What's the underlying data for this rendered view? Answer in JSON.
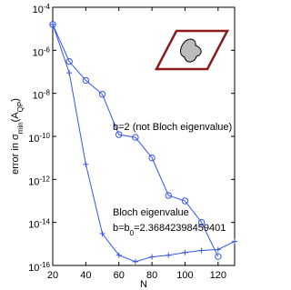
{
  "chart_data": {
    "type": "line",
    "x_label": "N",
    "y_label": "error in σ_{min}(A_{QP})",
    "xlim": [
      20,
      130
    ],
    "xticks": [
      20,
      40,
      60,
      80,
      100,
      120
    ],
    "ylim": [
      1e-16,
      0.0001
    ],
    "log_y": true,
    "yticks": [
      {
        "value": 1e-16,
        "label": "10^{-16}"
      },
      {
        "value": 1e-14,
        "label": "10^{-14}"
      },
      {
        "value": 1e-12,
        "label": "10^{-12}"
      },
      {
        "value": 1e-10,
        "label": "10^{-10}"
      },
      {
        "value": 1e-08,
        "label": "10^{-8}"
      },
      {
        "value": 1e-06,
        "label": "10^{-6}"
      },
      {
        "value": 0.0001,
        "label": "10^{-4}"
      }
    ],
    "series": [
      {
        "name": "b=2 (not Bloch eigenvalue)",
        "color": "#3355ee",
        "marker": "circle",
        "x": [
          20,
          30,
          40,
          50,
          60,
          70,
          80,
          90,
          100,
          110,
          120
        ],
        "values": [
          1.6e-05,
          3e-07,
          4e-08,
          9e-09,
          1.2e-10,
          9e-11,
          1e-11,
          1.8e-13,
          1e-13,
          1e-14,
          2.6e-16
        ]
      },
      {
        "name": "Bloch eigenvalue",
        "color": "#3355ee",
        "marker": "plus",
        "x": [
          20,
          30,
          40,
          50,
          60,
          70,
          80,
          90,
          100,
          110,
          120,
          130
        ],
        "values": [
          1.6e-05,
          9e-08,
          5e-12,
          3e-15,
          3e-16,
          1.5e-16,
          2.5e-16,
          3e-16,
          4e-16,
          5e-16,
          5.5e-16,
          1.3e-15
        ]
      }
    ],
    "annotations": [
      "b=b_{0}=2.36842398459401"
    ]
  }
}
